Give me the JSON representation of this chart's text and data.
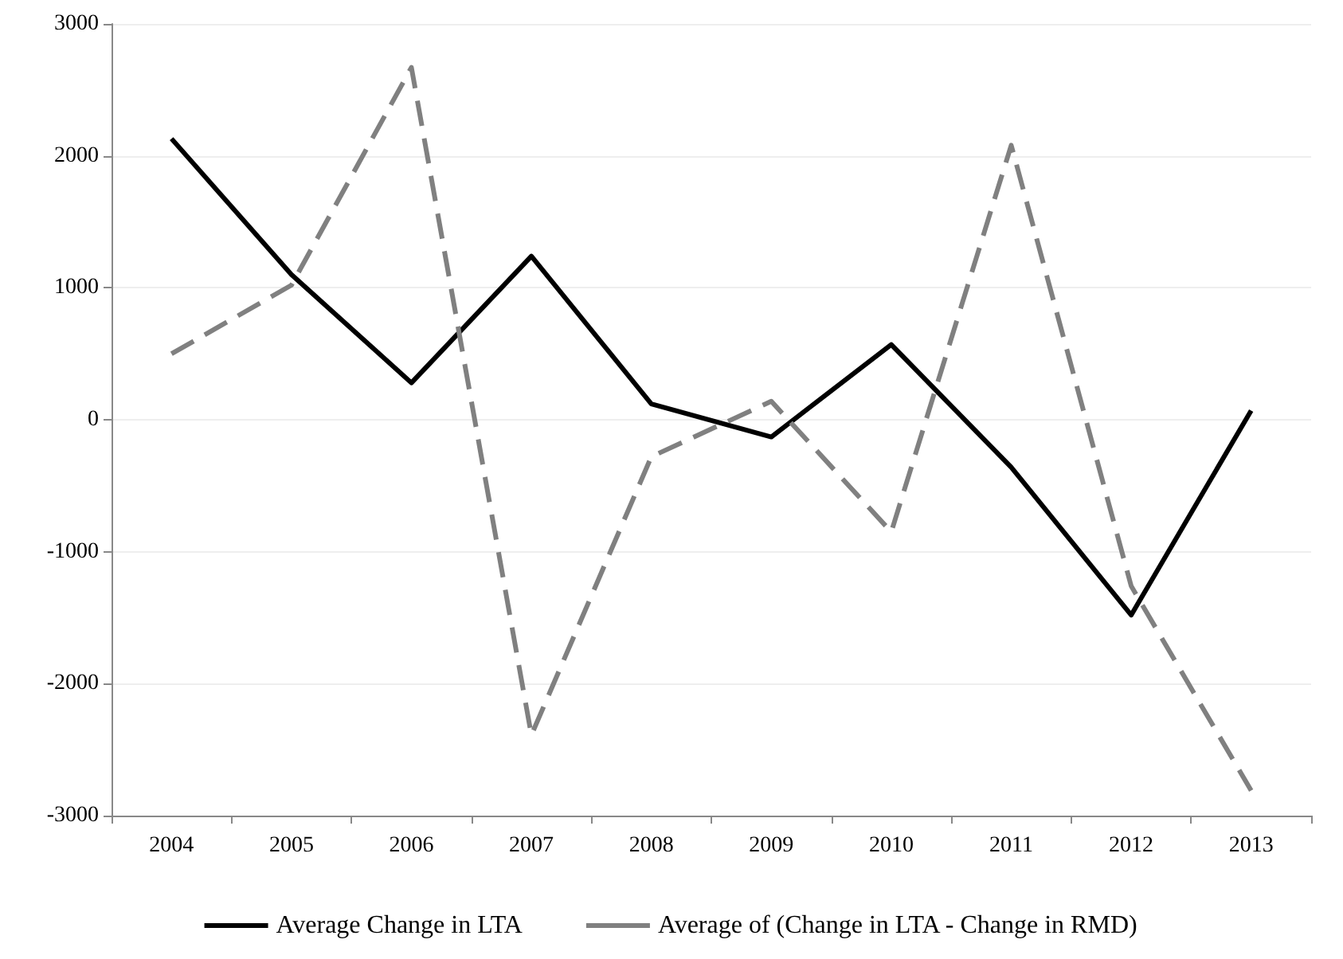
{
  "chart_data": {
    "type": "line",
    "categories": [
      "2004",
      "2005",
      "2006",
      "2007",
      "2008",
      "2009",
      "2010",
      "2011",
      "2012",
      "2013"
    ],
    "series": [
      {
        "name": "Average Change in LTA",
        "color": "#000000",
        "line_style": "solid",
        "values": [
          2130,
          1100,
          280,
          1240,
          120,
          -130,
          570,
          -360,
          -1480,
          70
        ]
      },
      {
        "name": "Average of (Change in LTA - Change in RMD)",
        "color": "#808080",
        "line_style": "dashed",
        "values": [
          500,
          1020,
          2670,
          -2390,
          -280,
          140,
          -850,
          2080,
          -1260,
          -2810
        ]
      }
    ],
    "ylim": [
      -3000,
      3000
    ],
    "yticks": [
      -3000,
      -2000,
      -1000,
      0,
      1000,
      2000,
      3000
    ],
    "grid": "y",
    "legend": "bottom",
    "marker": "none"
  }
}
